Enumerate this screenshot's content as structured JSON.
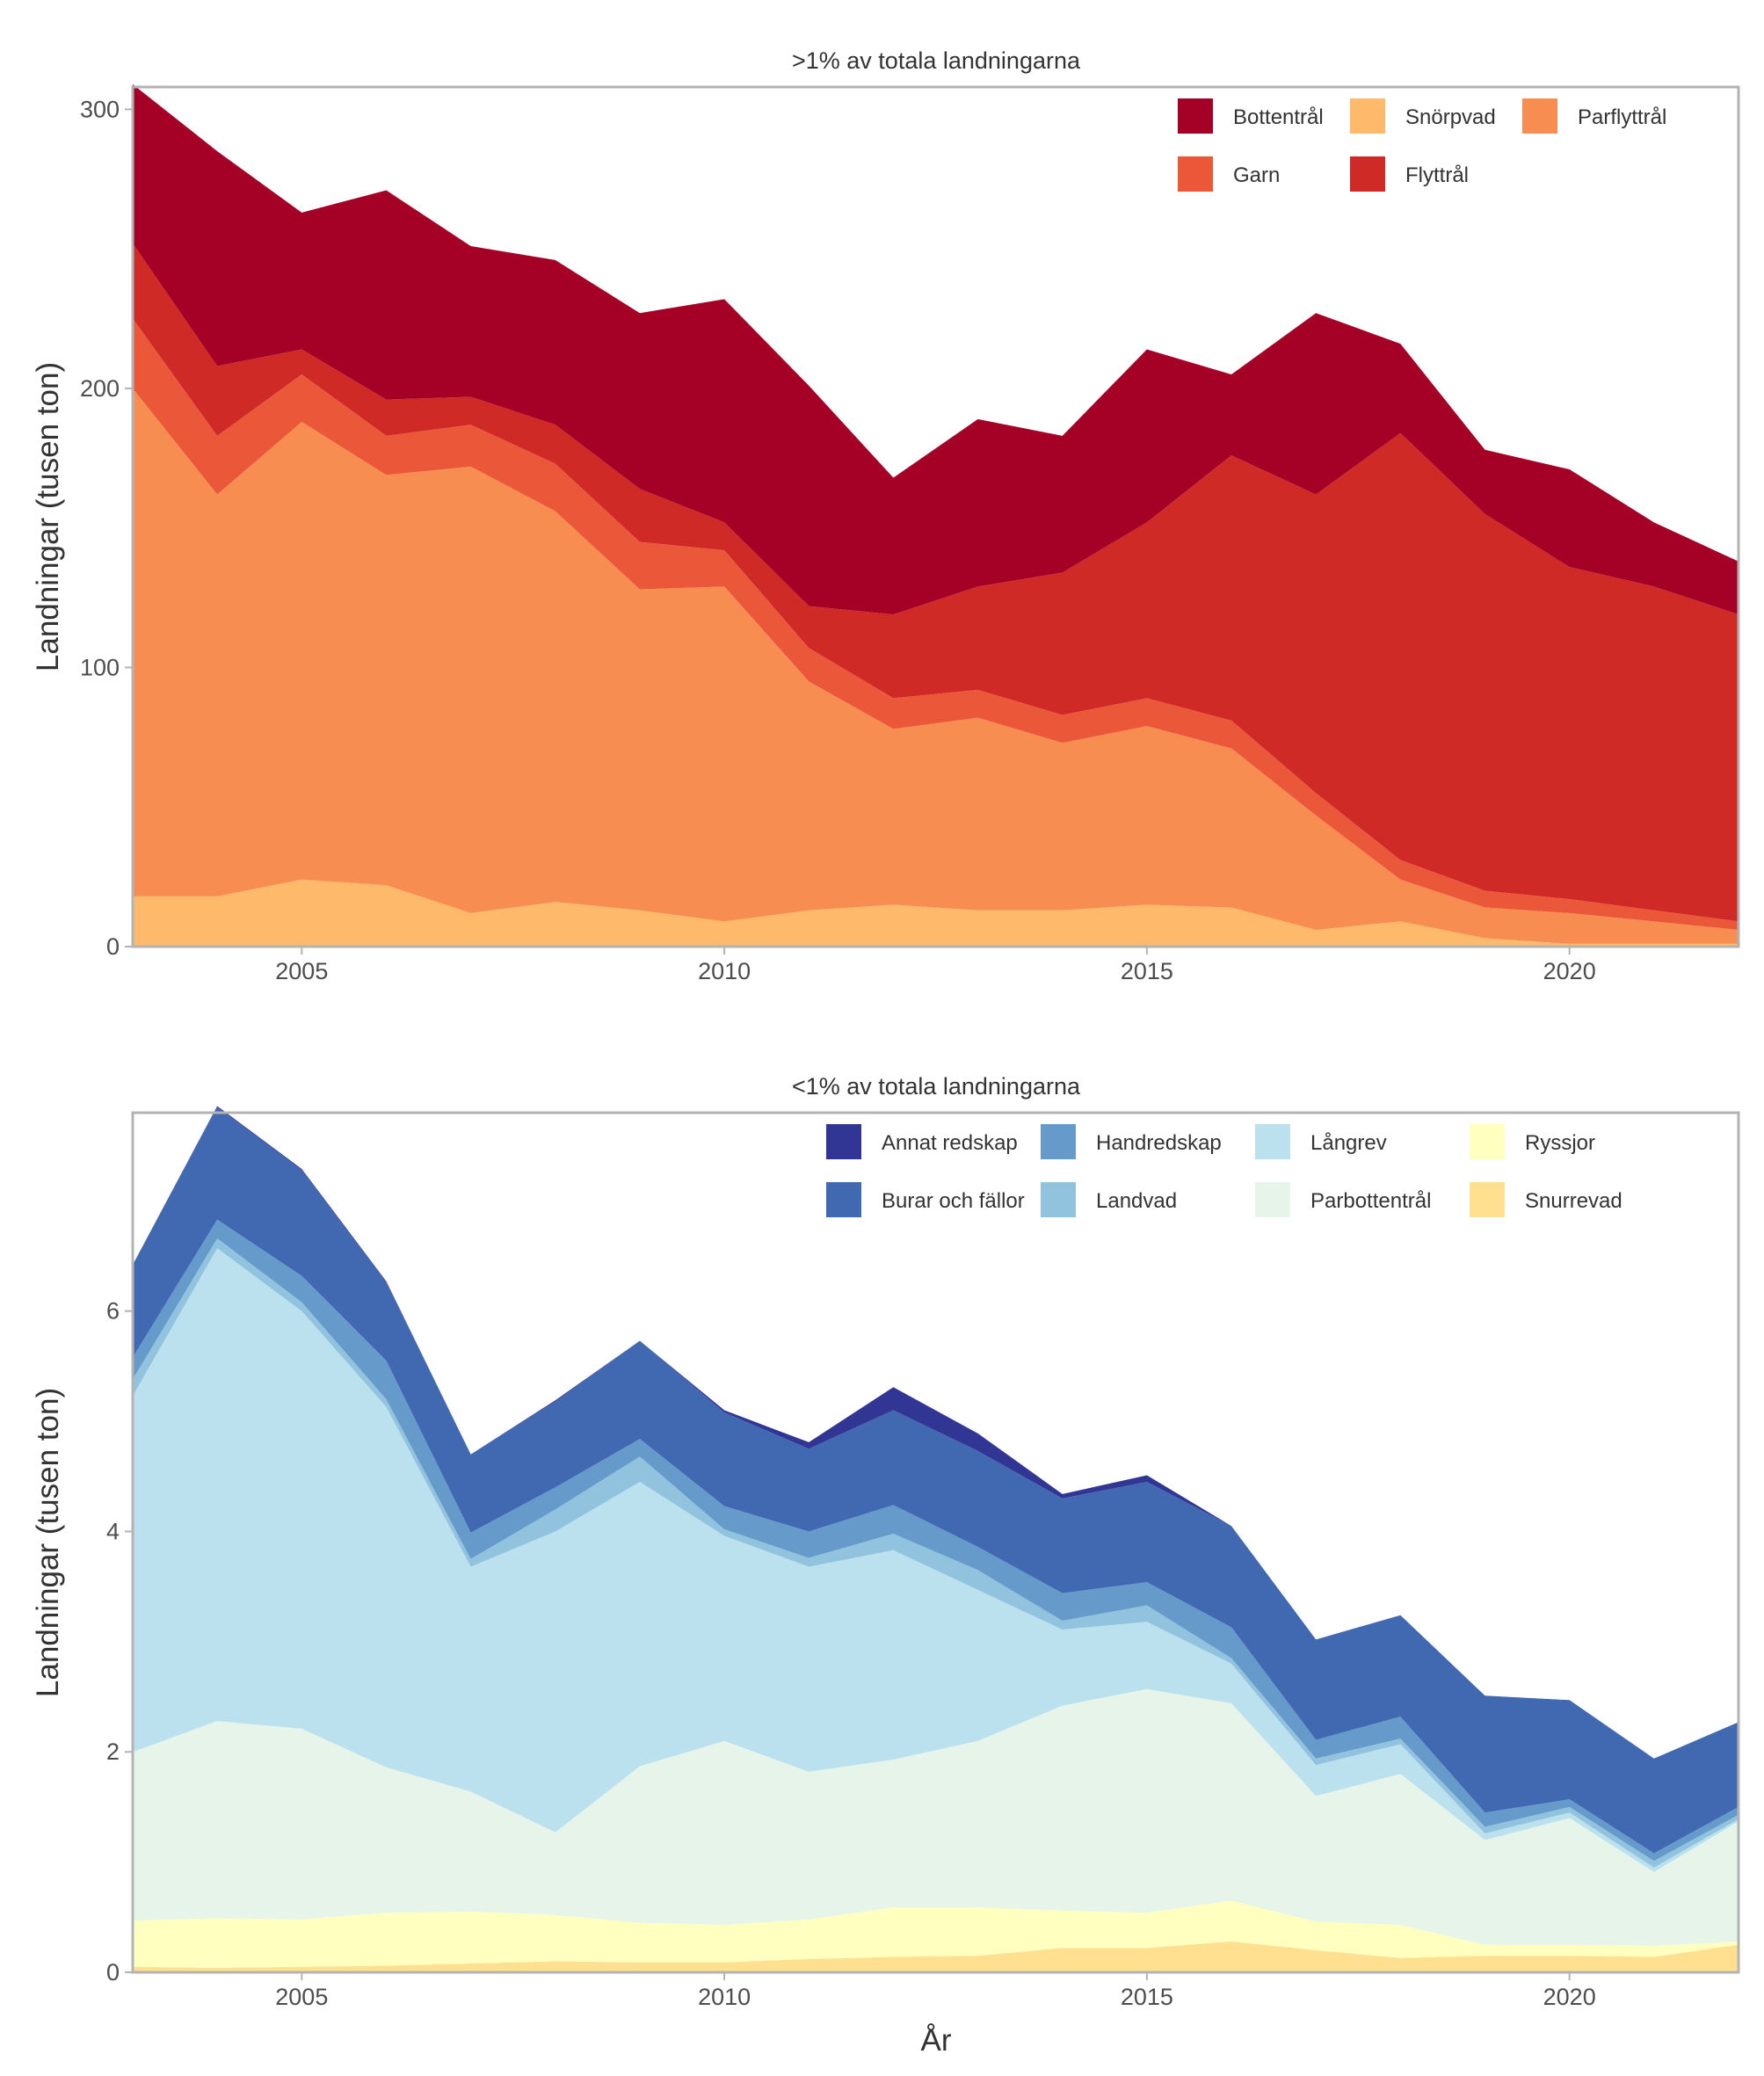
{
  "figure": {
    "xlabel": "År"
  },
  "chart_data": [
    {
      "type": "area",
      "stacked": true,
      "title": ">1% av totala landningarna",
      "xlabel": "",
      "ylabel": "Landningar (tusen ton)",
      "x": [
        2003,
        2004,
        2005,
        2006,
        2007,
        2008,
        2009,
        2010,
        2011,
        2012,
        2013,
        2014,
        2015,
        2016,
        2017,
        2018,
        2019,
        2020,
        2021,
        2022
      ],
      "xlim": [
        2003,
        2022
      ],
      "ylim": [
        0,
        308
      ],
      "xticks": [
        2005,
        2010,
        2015,
        2020
      ],
      "yticks": [
        0,
        100,
        200,
        300
      ],
      "grid": false,
      "legend": {
        "position": "top-right",
        "columns": 3,
        "order": [
          "Bottentrål",
          "Garn",
          "Snörpvad",
          "Flyttrål",
          "Parflyttrål"
        ]
      },
      "series": [
        {
          "name": "Snörpvad",
          "color": "#FEB96B",
          "values": [
            18,
            18,
            24,
            22,
            12,
            16,
            13,
            9,
            13,
            15,
            13,
            13,
            15,
            14,
            6,
            9,
            3,
            1,
            1,
            1
          ]
        },
        {
          "name": "Parflyttrål",
          "color": "#F88D52",
          "values": [
            182,
            144,
            164,
            147,
            160,
            140,
            115,
            120,
            82,
            63,
            69,
            60,
            64,
            57,
            41,
            15,
            11,
            11,
            8,
            5
          ]
        },
        {
          "name": "Garn",
          "color": "#EA5839",
          "values": [
            25,
            21,
            17,
            14,
            15,
            17,
            17,
            13,
            12,
            11,
            10,
            10,
            10,
            10,
            8,
            7,
            6,
            5,
            4,
            3
          ]
        },
        {
          "name": "Flyttrål",
          "color": "#D02A27",
          "values": [
            27,
            25,
            9,
            13,
            10,
            14,
            19,
            10,
            15,
            30,
            37,
            51,
            63,
            95,
            107,
            153,
            135,
            119,
            116,
            110
          ]
        },
        {
          "name": "Bottentrål",
          "color": "#A50026",
          "values": [
            57,
            77,
            49,
            75,
            54,
            59,
            63,
            80,
            79,
            49,
            60,
            49,
            62,
            29,
            65,
            32,
            23,
            35,
            23,
            19
          ]
        }
      ]
    },
    {
      "type": "area",
      "stacked": true,
      "title": "<1% av totala landningarna",
      "xlabel": "År",
      "ylabel": "Landningar (tusen ton)",
      "x": [
        2003,
        2004,
        2005,
        2006,
        2007,
        2008,
        2009,
        2010,
        2011,
        2012,
        2013,
        2014,
        2015,
        2016,
        2017,
        2018,
        2019,
        2020,
        2021,
        2022
      ],
      "xlim": [
        2003,
        2022
      ],
      "ylim": [
        0,
        7.8
      ],
      "xticks": [
        2005,
        2010,
        2015,
        2020
      ],
      "yticks": [
        0,
        2,
        4,
        6
      ],
      "grid": false,
      "legend": {
        "position": "top-right",
        "columns": 4,
        "order": [
          "Annat redskap",
          "Burar och fällor",
          "Handredskap",
          "Landvad",
          "Långrev",
          "Parbottentrål",
          "Ryssjor",
          "Snurrevad"
        ]
      },
      "series": [
        {
          "name": "Snurrevad",
          "color": "#FEE090",
          "values": [
            0.05,
            0.04,
            0.05,
            0.06,
            0.08,
            0.1,
            0.09,
            0.09,
            0.12,
            0.14,
            0.15,
            0.22,
            0.22,
            0.28,
            0.2,
            0.13,
            0.15,
            0.15,
            0.14,
            0.25
          ]
        },
        {
          "name": "Ryssjor",
          "color": "#FFFFBF",
          "values": [
            0.42,
            0.45,
            0.43,
            0.48,
            0.47,
            0.42,
            0.36,
            0.34,
            0.36,
            0.45,
            0.44,
            0.34,
            0.32,
            0.37,
            0.26,
            0.3,
            0.1,
            0.1,
            0.1,
            0.03
          ]
        },
        {
          "name": "Parbottentrål",
          "color": "#E6F4EA",
          "values": [
            1.53,
            1.79,
            1.73,
            1.32,
            1.09,
            0.75,
            1.42,
            1.67,
            1.34,
            1.34,
            1.51,
            1.86,
            2.03,
            1.79,
            1.14,
            1.37,
            0.95,
            1.15,
            0.67,
            1.09
          ]
        },
        {
          "name": "Långrev",
          "color": "#BBE0EE",
          "values": [
            3.23,
            4.29,
            3.79,
            3.27,
            2.04,
            2.73,
            2.58,
            1.86,
            1.86,
            1.9,
            1.37,
            0.69,
            0.61,
            0.36,
            0.28,
            0.27,
            0.06,
            0.05,
            0.04,
            0.02
          ]
        },
        {
          "name": "Landvad",
          "color": "#91C3DE",
          "values": [
            0.15,
            0.09,
            0.08,
            0.07,
            0.07,
            0.2,
            0.23,
            0.06,
            0.08,
            0.15,
            0.18,
            0.08,
            0.15,
            0.05,
            0.06,
            0.05,
            0.06,
            0.05,
            0.06,
            0.04
          ]
        },
        {
          "name": "Handredskap",
          "color": "#659ACA",
          "values": [
            0.2,
            0.17,
            0.24,
            0.35,
            0.24,
            0.2,
            0.16,
            0.21,
            0.24,
            0.26,
            0.21,
            0.25,
            0.21,
            0.28,
            0.17,
            0.2,
            0.13,
            0.07,
            0.07,
            0.07
          ]
        },
        {
          "name": "Burar och fällor",
          "color": "#4169B1",
          "values": [
            0.84,
            1.02,
            0.96,
            0.71,
            0.71,
            0.78,
            0.89,
            0.85,
            0.75,
            0.86,
            0.87,
            0.86,
            0.91,
            0.92,
            0.91,
            0.92,
            1.06,
            0.9,
            0.86,
            0.77
          ]
        },
        {
          "name": "Annat redskap",
          "color": "#313695",
          "values": [
            0,
            0.01,
            0.01,
            0.01,
            0,
            0.01,
            0,
            0.02,
            0.06,
            0.21,
            0.16,
            0.04,
            0.06,
            0,
            0,
            0,
            0,
            0,
            0,
            0
          ]
        }
      ]
    }
  ]
}
